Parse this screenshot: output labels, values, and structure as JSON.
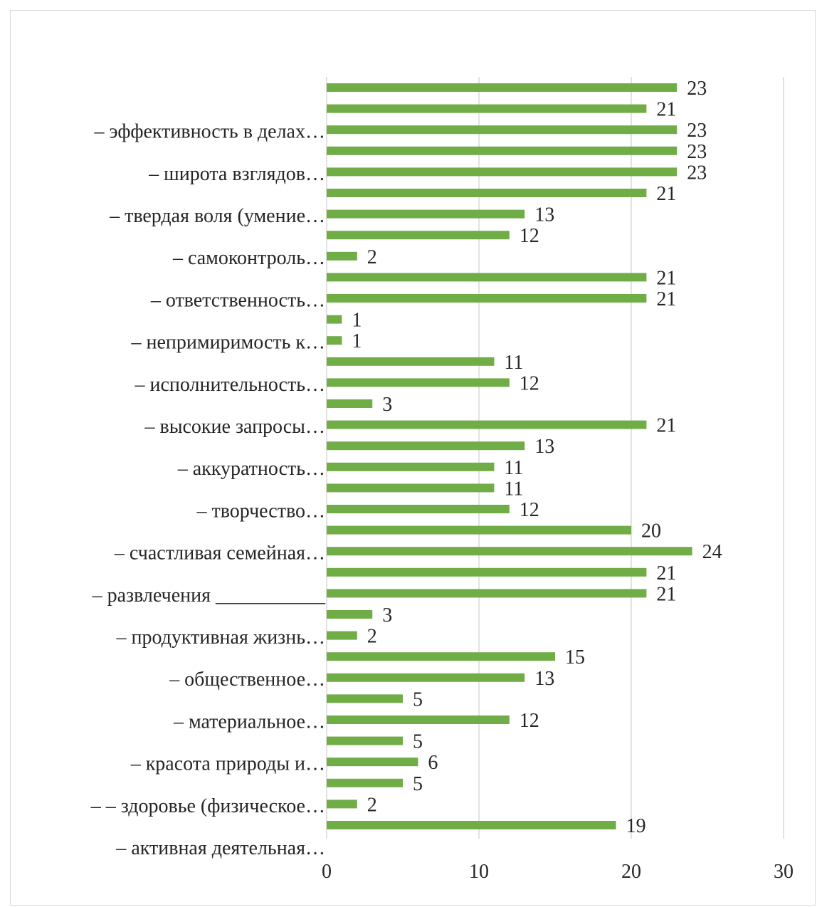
{
  "chart_data": {
    "type": "bar",
    "orientation": "horizontal",
    "title": "",
    "xlabel": "",
    "ylabel": "",
    "xlim": [
      0,
      30
    ],
    "x_ticks": [
      0,
      10,
      20,
      30
    ],
    "grid": "vertical",
    "legend": "none",
    "bar_color": "#70ad47",
    "categories": [
      "",
      "– эффективность в делах…",
      "",
      "– широта взглядов…",
      "",
      "– твердая воля (умение…",
      "",
      "– самоконтроль…",
      "",
      "– ответственность…",
      "",
      "– непримиримость к…",
      "",
      "– исполнительность…",
      "",
      "– высокие запросы…",
      "",
      "– аккуратность…",
      "",
      "– творчество…",
      "",
      "– счастливая семейная…",
      "",
      "– развлечения ___________",
      "",
      "– продуктивная жизнь…",
      "",
      "– общественное…",
      "",
      "– материальное…",
      "",
      "– красота природы и…",
      "",
      "– – здоровье (физическое…",
      "",
      "– активная деятельная…"
    ],
    "values": [
      23,
      21,
      23,
      23,
      23,
      21,
      13,
      12,
      2,
      21,
      21,
      1,
      1,
      11,
      12,
      3,
      21,
      13,
      11,
      11,
      12,
      20,
      24,
      21,
      21,
      3,
      2,
      15,
      13,
      5,
      12,
      5,
      6,
      5,
      2,
      19
    ]
  }
}
